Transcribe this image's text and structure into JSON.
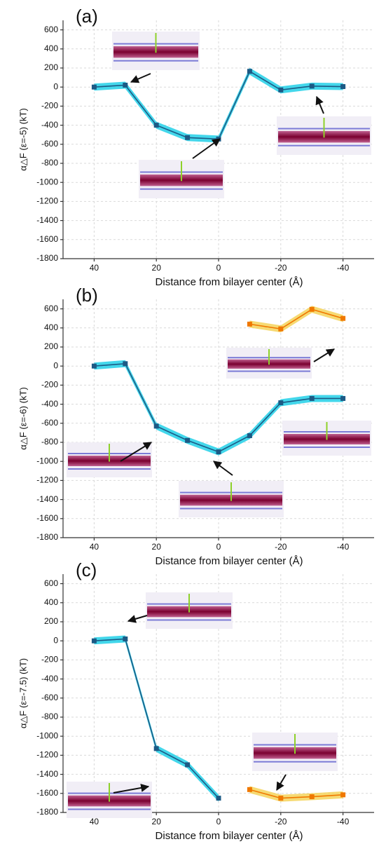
{
  "chart_data": [
    {
      "type": "line",
      "label": "(a)",
      "x_label": "Distance from bilayer center (Å)",
      "y_label": "α△F (ε=-5) (kT)",
      "xlim": [
        50,
        -50
      ],
      "xticks": [
        40,
        20,
        0,
        -20,
        -40
      ],
      "ylim": [
        -1800,
        700
      ],
      "yticks": [
        -1800,
        -1600,
        -1400,
        -1200,
        -1000,
        -800,
        -600,
        -400,
        -200,
        0,
        200,
        400,
        600
      ],
      "grid": true,
      "series": [
        {
          "color": "#1c5a85",
          "x": [
            40,
            30,
            20,
            10,
            0,
            -10,
            -20,
            -30,
            -40
          ],
          "values": [
            0,
            20,
            -400,
            -530,
            -545,
            165,
            -30,
            10,
            5
          ]
        }
      ]
    },
    {
      "type": "line",
      "label": "(b)",
      "x_label": "Distance from bilayer center (Å)",
      "y_label": "α△F (ε=-6) (kT)",
      "xlim": [
        50,
        -50
      ],
      "xticks": [
        40,
        20,
        0,
        -20,
        -40
      ],
      "ylim": [
        -1800,
        700
      ],
      "yticks": [
        -1800,
        -1600,
        -1400,
        -1200,
        -1000,
        -800,
        -600,
        -400,
        -200,
        0,
        200,
        400,
        600
      ],
      "grid": true,
      "series": [
        {
          "color": "#1c5a85",
          "x": [
            40,
            30,
            20,
            10,
            0,
            -10,
            -20,
            -30,
            -40
          ],
          "values": [
            0,
            25,
            -630,
            -780,
            -900,
            -730,
            -385,
            -340,
            -340
          ]
        },
        {
          "color": "#f07800",
          "x": [
            -10,
            -20,
            -30,
            -40
          ],
          "values": [
            440,
            390,
            595,
            500
          ]
        }
      ]
    },
    {
      "type": "line",
      "label": "(c)",
      "x_label": "Distance from bilayer center (Å)",
      "y_label": "α△F (ε=-7.5) (kT)",
      "xlim": [
        50,
        -50
      ],
      "xticks": [
        40,
        20,
        0,
        -20,
        -40
      ],
      "ylim": [
        -1800,
        700
      ],
      "yticks": [
        -1800,
        -1600,
        -1400,
        -1200,
        -1000,
        -800,
        -600,
        -400,
        -200,
        0,
        200,
        400,
        600
      ],
      "grid": true,
      "series": [
        {
          "color": "#1c5a85",
          "x": [
            40,
            30,
            20,
            10,
            0
          ],
          "values": [
            0,
            20,
            -1130,
            -1300,
            -1650
          ]
        },
        {
          "color": "#f07800",
          "x": [
            -10,
            -20,
            -30,
            -40
          ],
          "values": [
            -1560,
            -1650,
            -1635,
            -1615
          ]
        }
      ]
    }
  ]
}
